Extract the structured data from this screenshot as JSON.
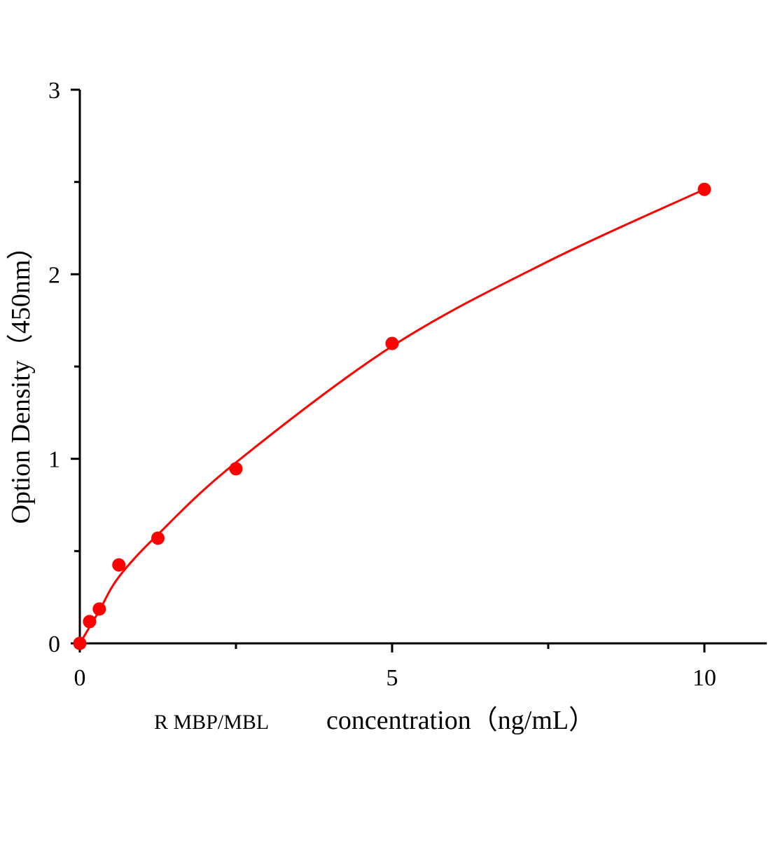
{
  "chart_data": {
    "type": "scatter",
    "title": "",
    "xlabel_prefix": "R MBP/MBL",
    "xlabel": "concentration（ng/mL）",
    "ylabel": "Option Density（450nm）",
    "xlim": [
      0,
      11
    ],
    "ylim": [
      0,
      3
    ],
    "xticks": [
      0,
      5,
      10
    ],
    "xtick_labels": [
      "0",
      "5",
      "10"
    ],
    "xminor": [
      2.5,
      7.5
    ],
    "yticks": [
      0,
      1,
      2,
      3
    ],
    "ytick_labels": [
      "0",
      "1",
      "2",
      "3"
    ],
    "yminor": [
      0.5,
      1.5,
      2.5
    ],
    "grid": false,
    "color": "#ff0000",
    "points": [
      {
        "x": 0,
        "y": 0
      },
      {
        "x": 0.156,
        "y": 0.118
      },
      {
        "x": 0.312,
        "y": 0.186
      },
      {
        "x": 0.625,
        "y": 0.425
      },
      {
        "x": 1.25,
        "y": 0.57
      },
      {
        "x": 2.5,
        "y": 0.946
      },
      {
        "x": 5,
        "y": 1.625
      },
      {
        "x": 10,
        "y": 2.46
      }
    ],
    "fit_curve": [
      {
        "x": 0,
        "y": 0
      },
      {
        "x": 0.3,
        "y": 0.17
      },
      {
        "x": 0.625,
        "y": 0.36
      },
      {
        "x": 1.25,
        "y": 0.59
      },
      {
        "x": 2.5,
        "y": 0.98
      },
      {
        "x": 5,
        "y": 1.61
      },
      {
        "x": 7.5,
        "y": 2.07
      },
      {
        "x": 10,
        "y": 2.46
      }
    ]
  }
}
